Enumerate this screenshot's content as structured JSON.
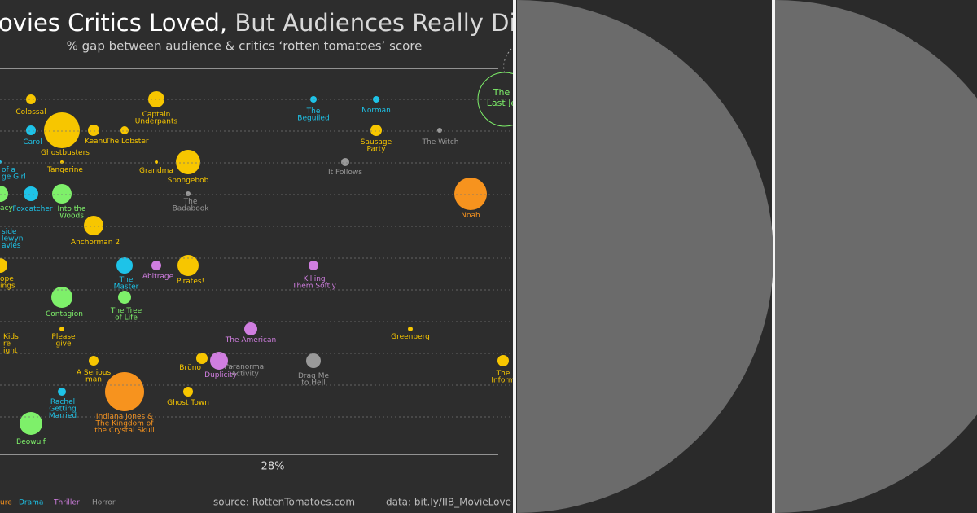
{
  "header": {
    "title_part1": "ovies Critics Loved,",
    "title_part2": "But Audiences Really Didn'",
    "subtitle": "% gap between audience & critics ‘rotten tomatoes’ score"
  },
  "bubbles": [
    {
      "label": [
        "Colossal"
      ]
    },
    {
      "label": [
        "Captain",
        "Underpants"
      ]
    },
    {
      "label": [
        "The",
        "Beguiled"
      ]
    },
    {
      "label": [
        "Norman"
      ]
    },
    {
      "label": [
        "The",
        "Last Je"
      ]
    },
    {
      "label": [
        "Carol"
      ]
    },
    {
      "label": [
        "Ghostbusters"
      ]
    },
    {
      "label": [
        "Keanu"
      ]
    },
    {
      "label": [
        "The Lobster"
      ]
    },
    {
      "label": [
        "Sausage",
        "Party"
      ]
    },
    {
      "label": [
        "The Witch"
      ]
    },
    {
      "label": [
        "of a",
        "ge Girl"
      ]
    },
    {
      "label": [
        "Tangerine"
      ]
    },
    {
      "label": [
        "Grandma"
      ]
    },
    {
      "label": [
        "Spongebob"
      ]
    },
    {
      "label": [
        "It Follows"
      ]
    },
    {
      "label": [
        "acy"
      ]
    },
    {
      "label": [
        "Foxcatcher"
      ]
    },
    {
      "label": [
        "Into the",
        "Woods"
      ]
    },
    {
      "label": [
        "The",
        "Badabook"
      ]
    },
    {
      "label": [
        "Noah"
      ]
    },
    {
      "label": [
        "side",
        "lewyn",
        "avies"
      ]
    },
    {
      "label": [
        "Anchorman 2"
      ]
    },
    {
      "label": [
        "ope",
        "ings"
      ]
    },
    {
      "label": [
        "The",
        "Master"
      ]
    },
    {
      "label": [
        "Abitrage"
      ]
    },
    {
      "label": [
        "Pirates!"
      ]
    },
    {
      "label": [
        "Killing",
        "Them Softly"
      ]
    },
    {
      "label": [
        "Contagion"
      ]
    },
    {
      "label": [
        "The Tree",
        "of Life"
      ]
    },
    {
      "label": [
        "Kids",
        "re",
        "ight"
      ]
    },
    {
      "label": [
        "Please",
        "give"
      ]
    },
    {
      "label": [
        "The American"
      ]
    },
    {
      "label": [
        "Greenberg"
      ]
    },
    {
      "label": [
        "A Serious",
        "man"
      ]
    },
    {
      "label": [
        "Brüno"
      ]
    },
    {
      "label": [
        "Duplicity"
      ]
    },
    {
      "label": [
        "Paranormal",
        "Activity"
      ]
    },
    {
      "label": [
        "Drag Me",
        "to Hell"
      ]
    },
    {
      "label": [
        "The",
        "Inform"
      ]
    },
    {
      "label": [
        "Rachel",
        "Getting",
        "Married"
      ]
    },
    {
      "label": [
        "Indiana Jones &",
        "The Kingdom of",
        "the Crystal Skull"
      ]
    },
    {
      "label": [
        "Ghost Town"
      ]
    },
    {
      "label": [
        "Beowulf"
      ]
    }
  ],
  "axis_label": "28%",
  "legend": [
    "ure",
    "Drama",
    "Thriller",
    "Horror"
  ],
  "footer": {
    "source": "source: RottenTomatoes.com",
    "data": "data: bit.ly/IIB_MovieLove"
  }
}
